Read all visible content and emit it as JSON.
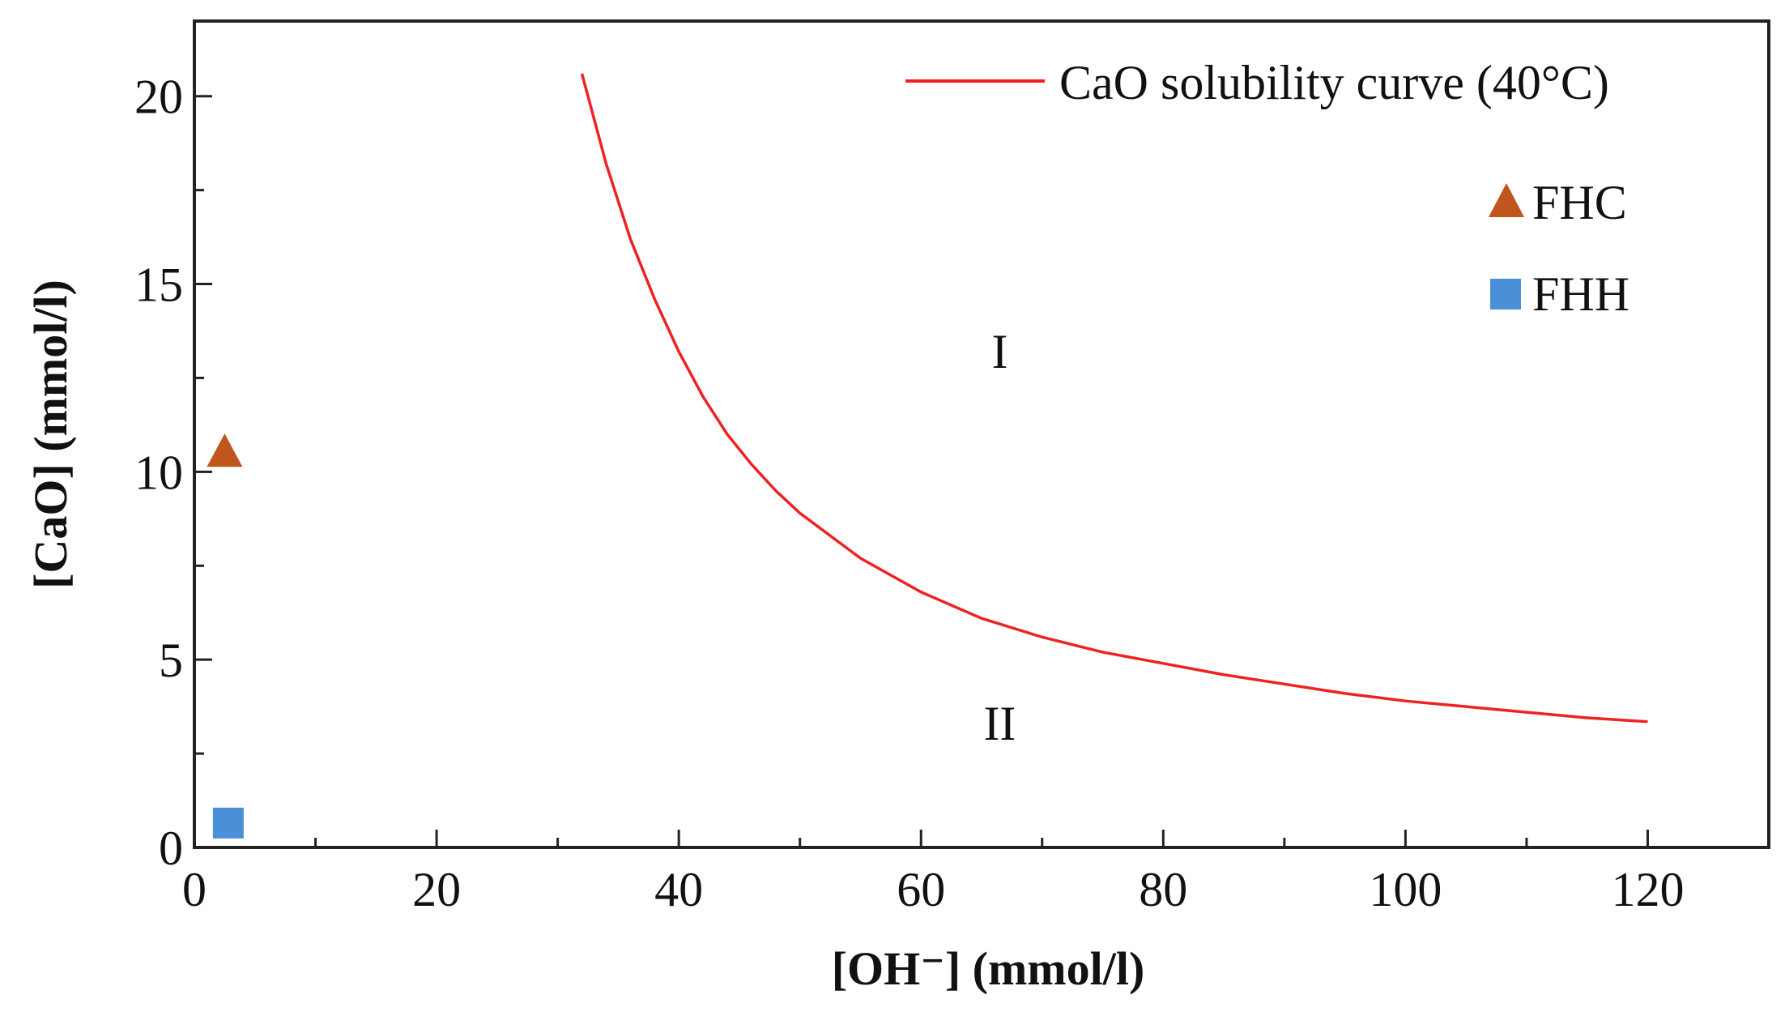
{
  "chart_data": {
    "type": "line",
    "title": "",
    "xlabel": "[OH⁻] (mmol/l)",
    "ylabel": "[CaO] (mmol/l)",
    "xlim": [
      0,
      130
    ],
    "ylim": [
      0,
      22
    ],
    "xticks": [
      0,
      20,
      40,
      60,
      80,
      100,
      120
    ],
    "xticks_minor": [
      10,
      30,
      50,
      70,
      90,
      110
    ],
    "yticks": [
      0,
      5,
      10,
      15,
      20
    ],
    "yticks_minor": [
      2.5,
      7.5,
      12.5,
      17.5
    ],
    "grid": false,
    "legend_position": "top-right",
    "series": [
      {
        "name": "CaO solubility curve (40°C)",
        "kind": "line",
        "color": "#ee2222",
        "x": [
          32,
          34,
          36,
          38,
          40,
          42,
          44,
          46,
          48,
          50,
          55,
          60,
          65,
          70,
          75,
          80,
          85,
          90,
          95,
          100,
          105,
          110,
          115,
          120
        ],
        "y": [
          20.6,
          18.2,
          16.2,
          14.6,
          13.2,
          12.0,
          11.0,
          10.2,
          9.5,
          8.9,
          7.7,
          6.8,
          6.1,
          5.6,
          5.2,
          4.9,
          4.6,
          4.35,
          4.1,
          3.9,
          3.75,
          3.6,
          3.45,
          3.35
        ]
      },
      {
        "name": "FHC",
        "kind": "scatter",
        "marker": "triangle",
        "color": "#c0561e",
        "x": [
          2.5
        ],
        "y": [
          10.5
        ]
      },
      {
        "name": "FHH",
        "kind": "scatter",
        "marker": "square",
        "color": "#4a90d9",
        "x": [
          2.8
        ],
        "y": [
          0.65
        ]
      }
    ],
    "annotations": [
      {
        "text": "I",
        "x": 66.5,
        "y": 13.2
      },
      {
        "text": "II",
        "x": 66.5,
        "y": 3.3
      }
    ]
  }
}
